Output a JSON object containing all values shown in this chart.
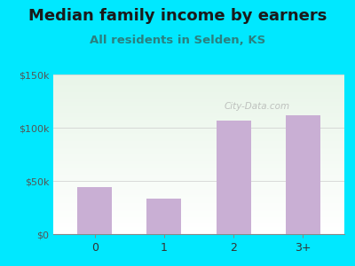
{
  "title": "Median family income by earners",
  "subtitle": "All residents in Selden, KS",
  "categories": [
    "0",
    "1",
    "2",
    "3+"
  ],
  "values": [
    44000,
    33000,
    107000,
    112000
  ],
  "bar_color": "#c9afd4",
  "ylim": [
    0,
    150000
  ],
  "yticks": [
    0,
    50000,
    100000,
    150000
  ],
  "ytick_labels": [
    "$0",
    "$50k",
    "$100k",
    "$150k"
  ],
  "background_outer": "#00e8ff",
  "title_color": "#1a1a1a",
  "subtitle_color": "#2a8080",
  "title_fontsize": 13,
  "subtitle_fontsize": 9.5,
  "watermark": "City-Data.com"
}
